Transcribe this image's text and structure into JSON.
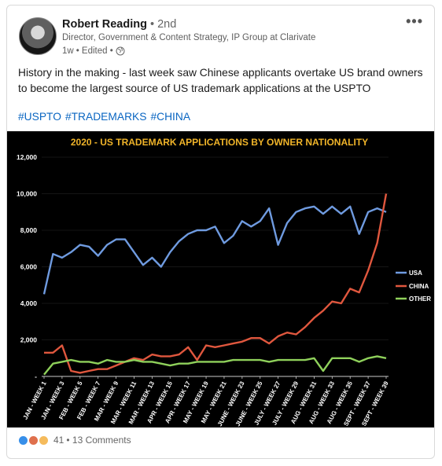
{
  "author": {
    "name": "Robert Reading",
    "degree": "• 2nd",
    "headline": "Director, Government & Content Strategy, IP Group at Clarivate",
    "time": "1w",
    "edited": "• Edited •"
  },
  "post": {
    "text": "History in the making - last week saw Chinese applicants overtake US brand owners to become the largest source of US trademark applications at the USPTO",
    "hashtags": [
      "#USPTO",
      "#TRADEMARKS",
      "#CHINA"
    ]
  },
  "social": {
    "reactions": "41",
    "comments": "• 13 Comments"
  },
  "icons": [
    "avatar",
    "more-options-icon",
    "globe-icon",
    "like-reaction-icon",
    "celebrate-reaction-icon",
    "insightful-reaction-icon"
  ],
  "colors": {
    "link": "#0a66c2",
    "chart_bg": "#000000",
    "title": "#f0b429",
    "usa": "#6f9be0",
    "china": "#e0573e",
    "other": "#8fd15b"
  },
  "chart_data": {
    "type": "line",
    "title": "2020 - US TRADEMARK APPLICATIONS BY OWNER NATIONALITY",
    "xlabel": "",
    "ylabel": "",
    "ylim": [
      0,
      12000
    ],
    "yticks": [
      "12,000",
      "10,000",
      "8,000",
      "6,000",
      "4,000",
      "2,000",
      "-"
    ],
    "legend_position": "right",
    "x": [
      1,
      2,
      3,
      4,
      5,
      6,
      7,
      8,
      9,
      10,
      11,
      12,
      13,
      14,
      15,
      16,
      17,
      18,
      19,
      20,
      21,
      22,
      23,
      24,
      25,
      26,
      27,
      28,
      29,
      30,
      31,
      32,
      33,
      34,
      35,
      36,
      37,
      38,
      39
    ],
    "categories": [
      "JAN - WEEK 1",
      "JAN - WEEK 3",
      "FEB - WEEK 5",
      "FEB - WEEK 7",
      "MAR - WEEK 9",
      "MAR - WEEK 11",
      "MAR - WEEK 13",
      "APR - WEEK 15",
      "APR - WEEK 17",
      "MAY - WEEK 19",
      "MAY - WEEK 21",
      "JUNE - WEEK 23",
      "JUNE - WEEK 25",
      "JULY - WEEK 27",
      "JULY - WEEK 29",
      "AUG - WEEK 31",
      "AUG - WEEK 33",
      "AUG - WEEK 35",
      "SEPT - WEEK 37",
      "SEPT - WEEK 39"
    ],
    "series": [
      {
        "name": "USA",
        "values": [
          4500,
          6700,
          6500,
          6800,
          7200,
          7100,
          6600,
          7200,
          7500,
          7500,
          6800,
          6100,
          6500,
          6000,
          6800,
          7400,
          7800,
          8000,
          8000,
          8200,
          7300,
          7700,
          8500,
          8200,
          8500,
          9200,
          7200,
          8400,
          9000,
          9200,
          9300,
          8900,
          9300,
          8900,
          9300,
          7800,
          9000,
          9200,
          9000
        ]
      },
      {
        "name": "CHINA",
        "values": [
          1300,
          1300,
          1700,
          300,
          200,
          300,
          400,
          400,
          600,
          800,
          1000,
          900,
          1200,
          1100,
          1100,
          1200,
          1600,
          900,
          1700,
          1600,
          1700,
          1800,
          1900,
          2100,
          2100,
          1800,
          2200,
          2400,
          2300,
          2700,
          3200,
          3600,
          4100,
          4000,
          4800,
          4600,
          5800,
          7300,
          10000
        ]
      },
      {
        "name": "OTHER",
        "values": [
          100,
          700,
          800,
          900,
          800,
          800,
          700,
          900,
          800,
          800,
          900,
          800,
          800,
          700,
          600,
          700,
          700,
          800,
          800,
          800,
          800,
          900,
          900,
          900,
          900,
          800,
          900,
          900,
          900,
          900,
          1000,
          300,
          1000,
          1000,
          1000,
          800,
          1000,
          1100,
          1000
        ]
      }
    ]
  }
}
